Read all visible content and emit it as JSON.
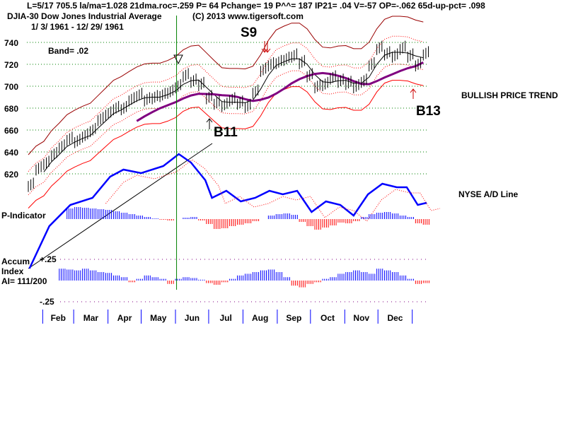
{
  "header": {
    "line1": "L=5/17  705.5  la/ma=1.028 21dma.roc=.259 P=  64 Pchange=  19 P^^= 187 IP21= .04 V=-57 OP=-.062 65d-up-pct= .098",
    "title": "DJIA-30  Dow Jones Industrial Average",
    "copyright": "(C) 2013 www.tigersoft.com",
    "range": "1/ 3/ 1961 - 12/ 29/ 1961",
    "band": "Band= .02"
  },
  "labels": {
    "trend": "BULLISH PRICE TREND",
    "ad": "NYSE A/D Line",
    "pind": "P-Indicator",
    "accum1": "Accum",
    "accum2": "Index",
    "ai": "AI= 111/200",
    "ai_hi": "+.25",
    "ai_lo": "-.25"
  },
  "signals": [
    {
      "label": "S9",
      "day": 152
    },
    {
      "label": "B11",
      "day": 165
    },
    {
      "label": "B13",
      "day": 350
    }
  ],
  "colors": {
    "price": "#000000",
    "band": "#cc0000",
    "ma65": "#800080",
    "ad": "#0000ff",
    "pos": "#0000ff",
    "neg": "#ff0000",
    "marker": "#008000"
  },
  "chart_data": {
    "type": "line",
    "title": "DJIA-30 Dow Jones Industrial Average 1961",
    "ylim": [
      600,
      760
    ],
    "yticks": [
      620,
      640,
      660,
      680,
      700,
      720,
      740
    ],
    "months": [
      "Feb",
      "Mar",
      "Apr",
      "May",
      "Jun",
      "Jul",
      "Aug",
      "Sep",
      "Oct",
      "Nov",
      "Dec"
    ],
    "month_start_days": [
      32,
      60,
      91,
      121,
      152,
      182,
      213,
      244,
      274,
      305,
      335
    ],
    "marker_day": 137,
    "price_weekly": [
      610,
      625,
      630,
      638,
      645,
      652,
      650,
      655,
      660,
      670,
      675,
      680,
      680,
      688,
      692,
      688,
      690,
      692,
      695,
      700,
      710,
      705,
      702,
      690,
      685,
      683,
      688,
      685,
      682,
      695,
      715,
      720,
      722,
      725,
      728,
      722,
      710,
      700,
      702,
      708,
      705,
      703,
      700,
      705,
      720,
      735,
      730,
      728,
      735,
      728,
      720,
      730
    ],
    "ad_line": [
      [
        4,
        10
      ],
      [
        22,
        40
      ],
      [
        41,
        55
      ],
      [
        61,
        60
      ],
      [
        77,
        75
      ],
      [
        89,
        80
      ],
      [
        105,
        77.5
      ],
      [
        125,
        82.5
      ],
      [
        139,
        91
      ],
      [
        150,
        85
      ],
      [
        163,
        72.5
      ],
      [
        169,
        60
      ],
      [
        182,
        65
      ],
      [
        195,
        57.5
      ],
      [
        208,
        60
      ],
      [
        221,
        65
      ],
      [
        233,
        62.5
      ],
      [
        246,
        65
      ],
      [
        259,
        50
      ],
      [
        272,
        57.5
      ],
      [
        285,
        55
      ],
      [
        297,
        47.5
      ],
      [
        310,
        62.5
      ],
      [
        323,
        70
      ],
      [
        336,
        67.5
      ],
      [
        345,
        67.5
      ],
      [
        355,
        55
      ],
      [
        363,
        56.5
      ]
    ],
    "p_indicator_weekly": [
      0,
      0,
      0,
      0,
      0,
      30,
      34,
      32,
      30,
      28,
      26,
      22,
      18,
      14,
      10,
      6,
      2,
      -2,
      -4,
      0,
      4,
      6,
      -4,
      -14,
      -28,
      -26,
      -20,
      -16,
      -12,
      -6,
      0,
      10,
      14,
      16,
      12,
      -8,
      -20,
      -30,
      -24,
      -18,
      -10,
      -12,
      -6,
      6,
      14,
      18,
      20,
      16,
      10,
      6,
      -12,
      -16
    ],
    "accum_weekly": [
      0,
      0,
      0,
      0,
      0.14,
      0.13,
      0.12,
      0.14,
      0.12,
      0.1,
      0.09,
      0.06,
      0.04,
      -0.02,
      0.02,
      0.06,
      0.04,
      0.02,
      -0.04,
      0.02,
      0.04,
      0.03,
      0.01,
      -0.03,
      -0.05,
      -0.02,
      0.02,
      0.06,
      0.08,
      0.1,
      0.12,
      0.13,
      0.1,
      0.04,
      -0.06,
      -0.08,
      -0.04,
      -0.02,
      0.02,
      0.04,
      0.08,
      0.1,
      0.12,
      0.1,
      0.08,
      0.14,
      0.12,
      0.1,
      0.06,
      0.02,
      -0.04,
      -0.03
    ]
  }
}
